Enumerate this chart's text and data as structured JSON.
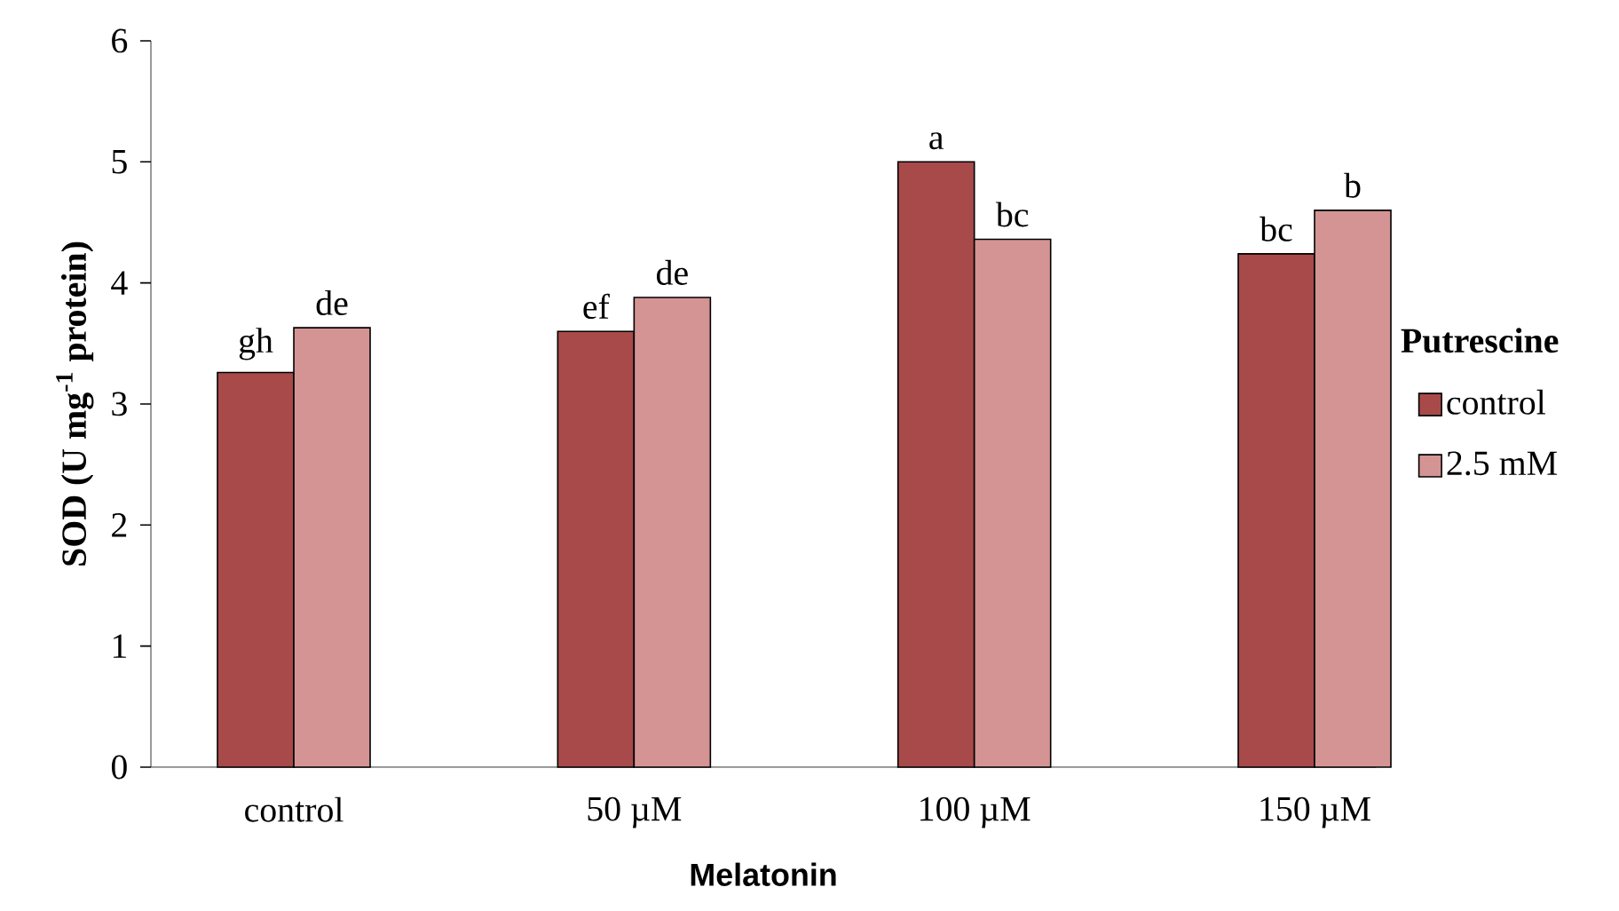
{
  "chart_data": {
    "type": "bar",
    "xlabel": "Melatonin",
    "ylabel": "SOD (U mg$^{-1}$ protein)",
    "legend_title": "Putrescine",
    "categories": [
      "control",
      "50 µM",
      "100 µM",
      "150 µM"
    ],
    "series": [
      {
        "name": "control",
        "color": "#a84a4a",
        "values": [
          3.26,
          3.6,
          5.0,
          4.24
        ],
        "value_labels": [
          "gh",
          "ef",
          "a",
          "bc"
        ]
      },
      {
        "name": "2.5 mM",
        "color": "#d49494",
        "values": [
          3.63,
          3.88,
          4.36,
          4.6
        ],
        "value_labels": [
          "de",
          "de",
          "bc",
          "b"
        ]
      }
    ],
    "ylim": [
      0,
      6
    ],
    "yticks": [
      0,
      1,
      2,
      3,
      4,
      5,
      6
    ],
    "grid": false,
    "legend": "right"
  }
}
